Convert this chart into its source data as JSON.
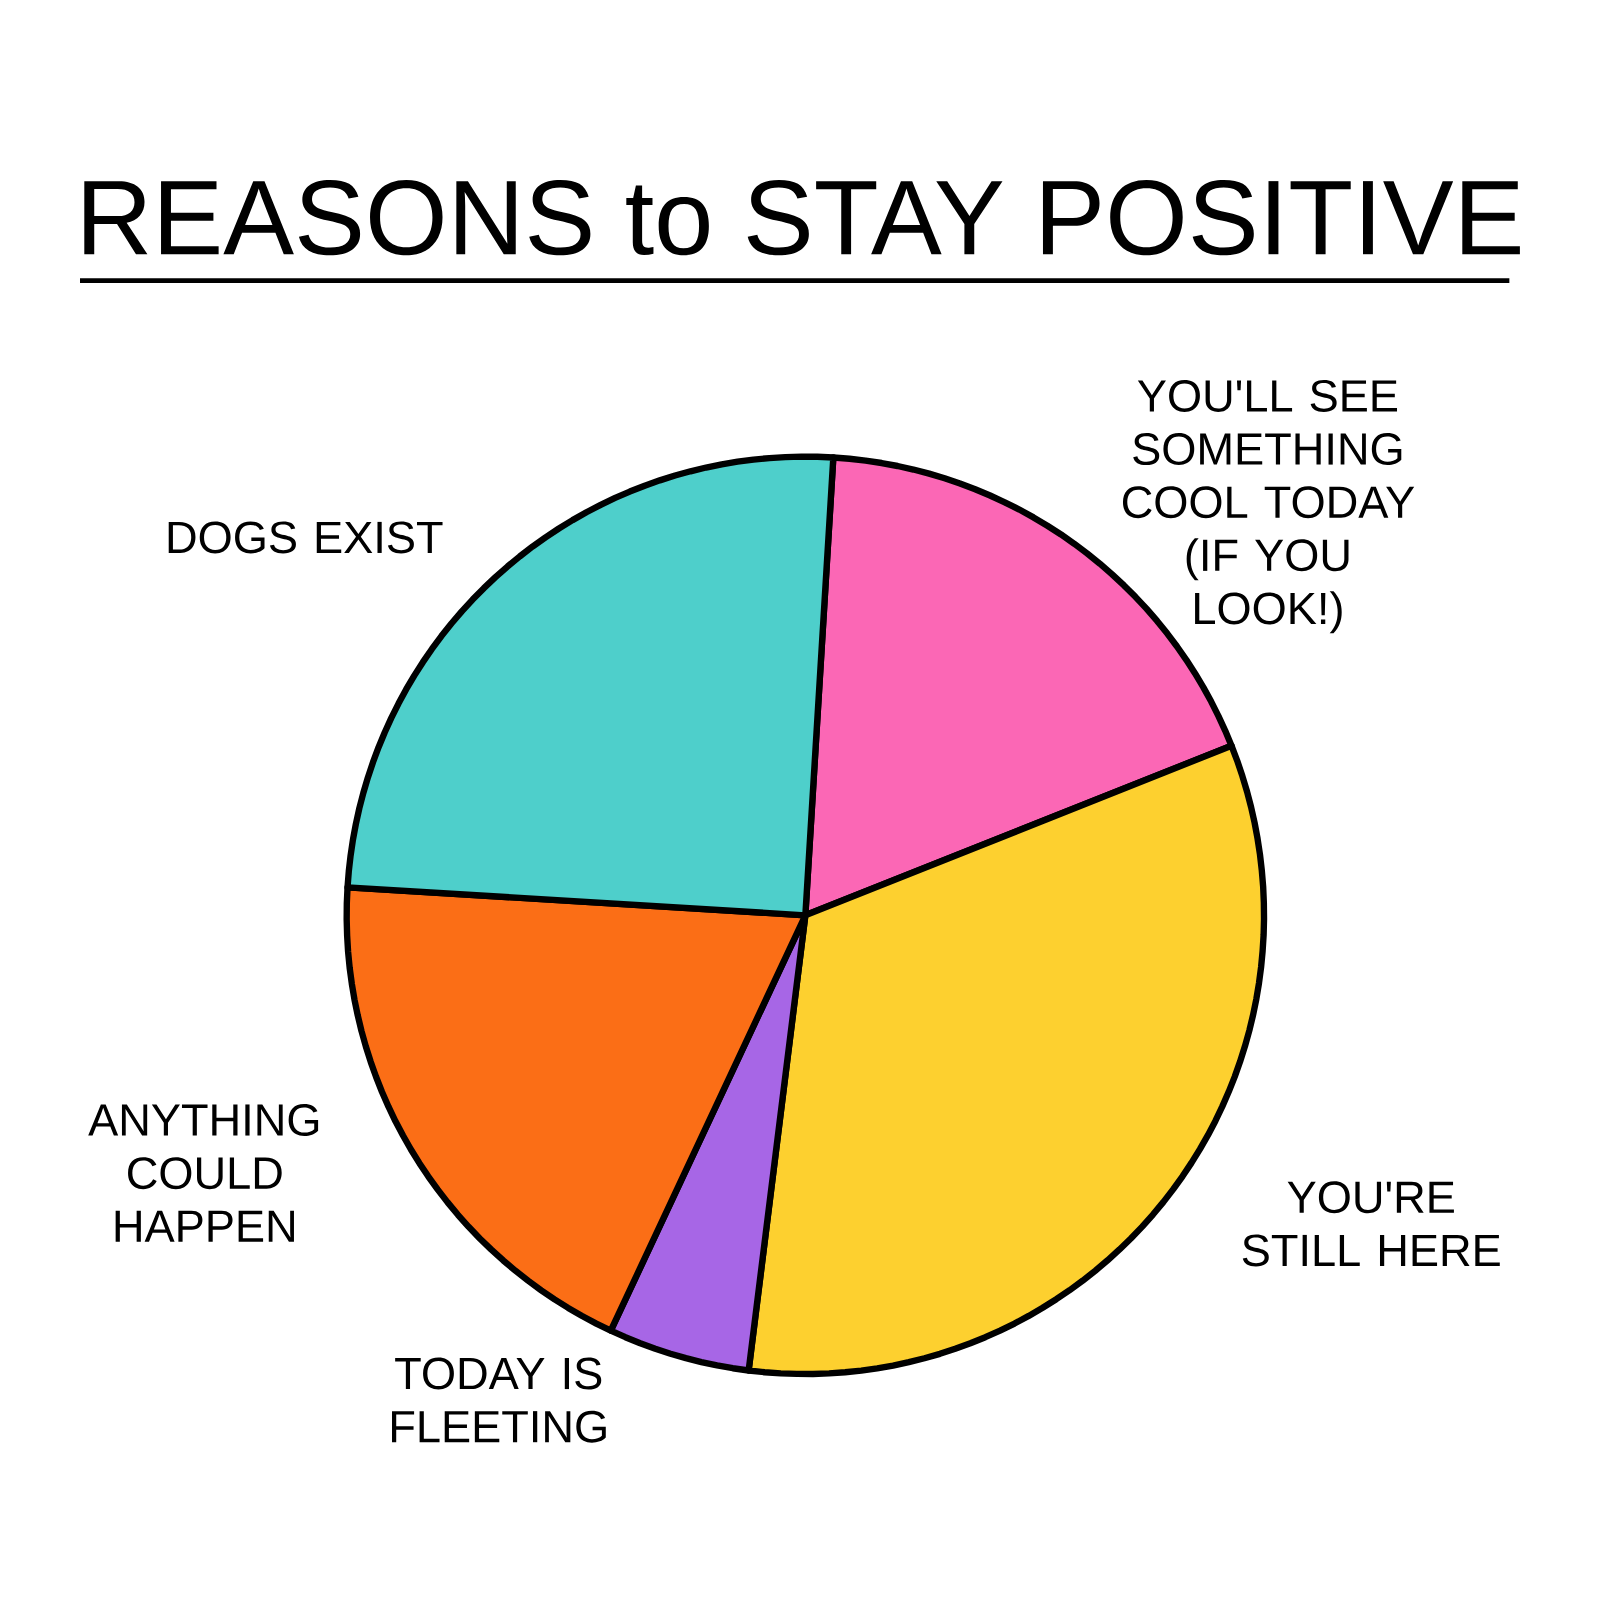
{
  "chart_data": {
    "type": "pie",
    "title": "REASONS to STAY POSITIVE",
    "categories": [
      "YOU'LL SEE SOMETHING COOL TODAY (IF YOU LOOK!)",
      "YOU'RE STILL HERE",
      "TODAY IS FLEETING",
      "ANYTHING COULD HAPPEN",
      "DOGS EXIST"
    ],
    "values": [
      18,
      33,
      5,
      19,
      25
    ],
    "colors": [
      "#fb67b5",
      "#fdd02f",
      "#a766e6",
      "#fb6e16",
      "#4ecfcb"
    ]
  }
}
